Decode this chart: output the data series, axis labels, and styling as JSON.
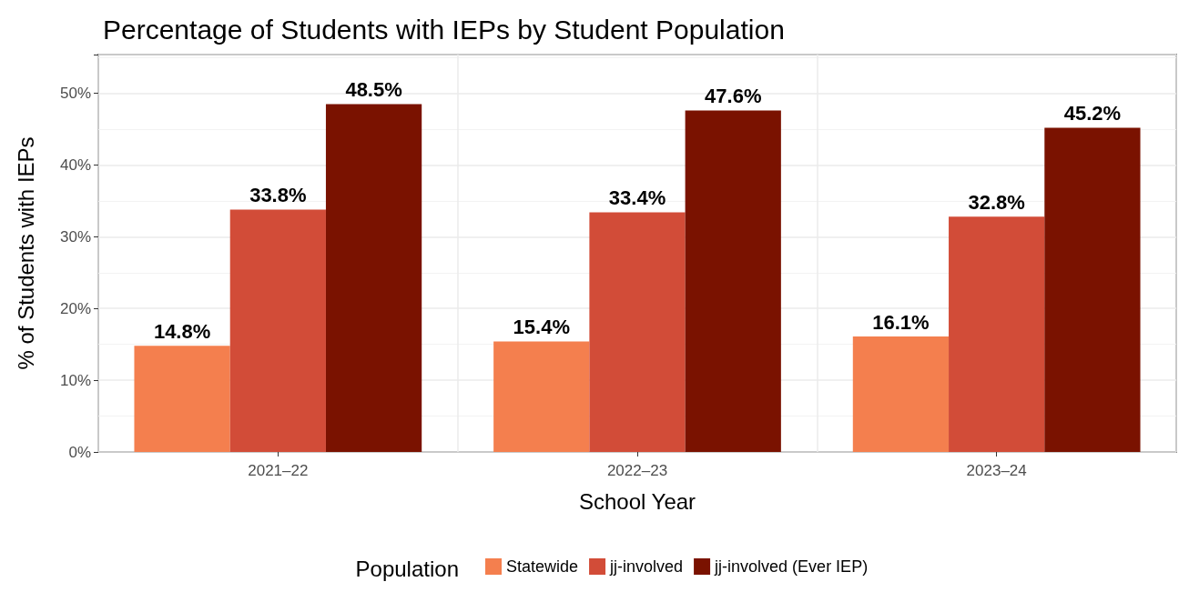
{
  "chart_data": {
    "type": "bar",
    "title": "Percentage of Students with IEPs by Student Population",
    "xlabel": "School Year",
    "ylabel": "% of Students with IEPs",
    "legend_title": "Population",
    "categories": [
      "2021–22",
      "2022–23",
      "2023–24"
    ],
    "series": [
      {
        "name": "Statewide",
        "color": "#f47f4e",
        "values": [
          14.8,
          15.4,
          16.1
        ],
        "value_labels": [
          "14.8%",
          "15.4%",
          "16.1%"
        ]
      },
      {
        "name": "jj-involved",
        "color": "#d24c38",
        "values": [
          33.8,
          33.4,
          32.8
        ],
        "value_labels": [
          "33.8%",
          "33.4%",
          "32.8%"
        ]
      },
      {
        "name": "jj-involved (Ever IEP)",
        "color": "#7a1200",
        "values": [
          48.5,
          47.6,
          45.2
        ],
        "value_labels": [
          "48.5%",
          "47.6%",
          "45.2%"
        ]
      }
    ],
    "ylim": [
      0,
      55.4
    ],
    "yticks": [
      {
        "value": 0,
        "label": "0%"
      },
      {
        "value": 10,
        "label": "10%"
      },
      {
        "value": 20,
        "label": "20%"
      },
      {
        "value": 30,
        "label": "30%"
      },
      {
        "value": 40,
        "label": "40%"
      },
      {
        "value": 50,
        "label": "50%"
      }
    ],
    "grid": true,
    "legend": "bottom"
  }
}
